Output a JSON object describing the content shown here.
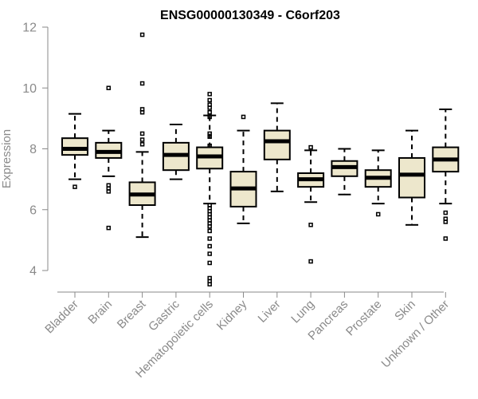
{
  "chart_data": {
    "type": "boxplot",
    "title": "ENSG00000130349 - C6orf203",
    "xlabel": "",
    "ylabel": "Expression",
    "ylim": [
      3.4,
      12.1
    ],
    "yticks": [
      4,
      6,
      8,
      10,
      12
    ],
    "grid": false,
    "box_color": "#ede7cc",
    "categories": [
      "Bladder",
      "Brain",
      "Breast",
      "Gastric",
      "Hematopoietic cells",
      "Kidney",
      "Liver",
      "Lung",
      "Pancreas",
      "Prostate",
      "Skin",
      "Unknown / Other"
    ],
    "boxes": [
      {
        "category": "Bladder",
        "whisker_low": 7.0,
        "q1": 7.8,
        "median": 8.0,
        "q3": 8.35,
        "whisker_high": 9.15,
        "outliers": [
          6.75
        ]
      },
      {
        "category": "Brain",
        "whisker_low": 7.1,
        "q1": 7.7,
        "median": 7.9,
        "q3": 8.2,
        "whisker_high": 8.6,
        "outliers": [
          10.0,
          6.8,
          6.7,
          6.6,
          5.4
        ]
      },
      {
        "category": "Breast",
        "whisker_low": 5.1,
        "q1": 6.15,
        "median": 6.5,
        "q3": 6.9,
        "whisker_high": 7.9,
        "outliers": [
          11.75,
          10.15,
          9.3,
          9.2,
          8.5,
          8.3,
          8.15
        ]
      },
      {
        "category": "Gastric",
        "whisker_low": 7.0,
        "q1": 7.3,
        "median": 7.8,
        "q3": 8.2,
        "whisker_high": 8.8,
        "outliers": []
      },
      {
        "category": "Hematopoietic cells",
        "whisker_low": 6.2,
        "q1": 7.35,
        "median": 7.75,
        "q3": 8.05,
        "whisker_high": 9.1,
        "outliers": [
          9.8,
          9.6,
          9.45,
          9.35,
          9.2,
          9.05,
          8.5,
          8.4,
          8.1,
          6.15,
          6.05,
          5.95,
          5.85,
          5.75,
          5.65,
          5.55,
          5.45,
          5.3,
          5.05,
          4.8,
          4.55,
          4.25,
          3.75,
          3.65,
          3.55
        ]
      },
      {
        "category": "Kidney",
        "whisker_low": 5.55,
        "q1": 6.1,
        "median": 6.7,
        "q3": 7.25,
        "whisker_high": 8.6,
        "outliers": [
          9.05
        ]
      },
      {
        "category": "Liver",
        "whisker_low": 6.6,
        "q1": 7.65,
        "median": 8.25,
        "q3": 8.6,
        "whisker_high": 9.5,
        "outliers": []
      },
      {
        "category": "Lung",
        "whisker_low": 6.25,
        "q1": 6.75,
        "median": 7.0,
        "q3": 7.2,
        "whisker_high": 7.95,
        "outliers": [
          8.05,
          5.5,
          4.3
        ]
      },
      {
        "category": "Pancreas",
        "whisker_low": 6.5,
        "q1": 7.1,
        "median": 7.4,
        "q3": 7.6,
        "whisker_high": 8.0,
        "outliers": []
      },
      {
        "category": "Prostate",
        "whisker_low": 6.2,
        "q1": 6.75,
        "median": 7.05,
        "q3": 7.3,
        "whisker_high": 7.95,
        "outliers": [
          5.85
        ]
      },
      {
        "category": "Skin",
        "whisker_low": 5.5,
        "q1": 6.4,
        "median": 7.15,
        "q3": 7.7,
        "whisker_high": 8.6,
        "outliers": []
      },
      {
        "category": "Unknown / Other",
        "whisker_low": 6.2,
        "q1": 7.25,
        "median": 7.65,
        "q3": 8.05,
        "whisker_high": 9.3,
        "outliers": [
          5.9,
          5.7,
          5.6,
          5.05
        ]
      }
    ]
  }
}
